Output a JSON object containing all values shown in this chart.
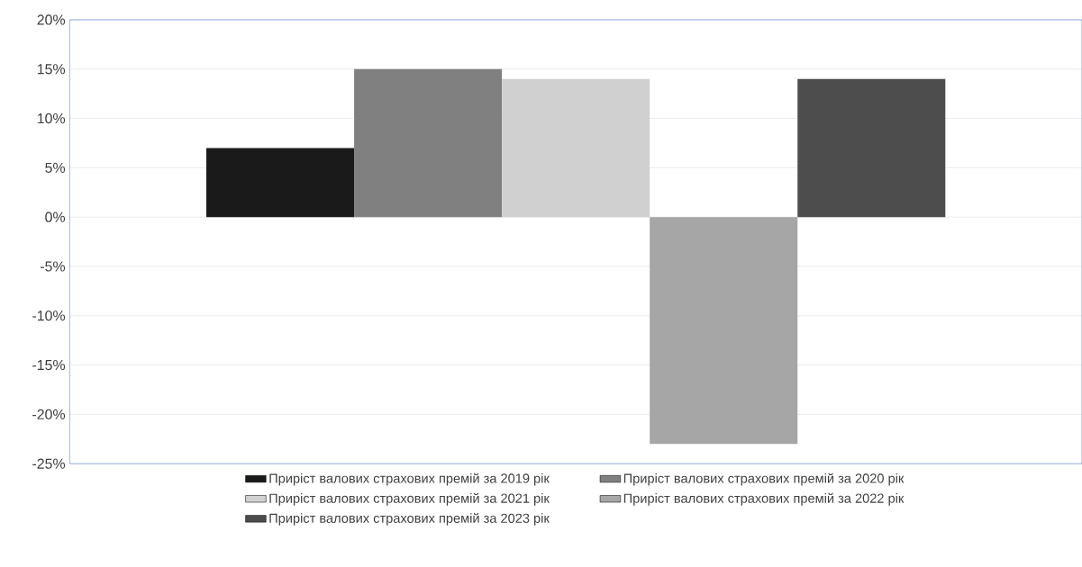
{
  "chart_data": {
    "type": "bar",
    "categories": [
      null
    ],
    "series": [
      {
        "name": "Приріст валових страхових премій за 2019 рік",
        "color": "#1a1a1a",
        "values": [
          7
        ]
      },
      {
        "name": "Приріст валових страхових премій за 2020 рік",
        "color": "#808080",
        "values": [
          15
        ]
      },
      {
        "name": "Приріст валових страхових премій за 2021 рік",
        "color": "#d0d0d0",
        "values": [
          14
        ]
      },
      {
        "name": "Приріст валових страхових премій за 2022 рік",
        "color": "#a6a6a6",
        "values": [
          -23
        ]
      },
      {
        "name": "Приріст валових страхових премій за 2023 рік",
        "color": "#4d4d4d",
        "values": [
          14
        ]
      }
    ],
    "ylim": [
      -25,
      20
    ],
    "yticks": [
      {
        "value": -25,
        "label": "-25%"
      },
      {
        "value": -20,
        "label": "-20%"
      },
      {
        "value": -15,
        "label": "-15%"
      },
      {
        "value": -10,
        "label": "-10%"
      },
      {
        "value": -5,
        "label": "-5%"
      },
      {
        "value": 0,
        "label": "0%"
      },
      {
        "value": 5,
        "label": "5%"
      },
      {
        "value": 10,
        "label": "10%"
      },
      {
        "value": 15,
        "label": "15%"
      },
      {
        "value": 20,
        "label": "20%"
      }
    ],
    "grid": "y",
    "legend": "bottom"
  }
}
